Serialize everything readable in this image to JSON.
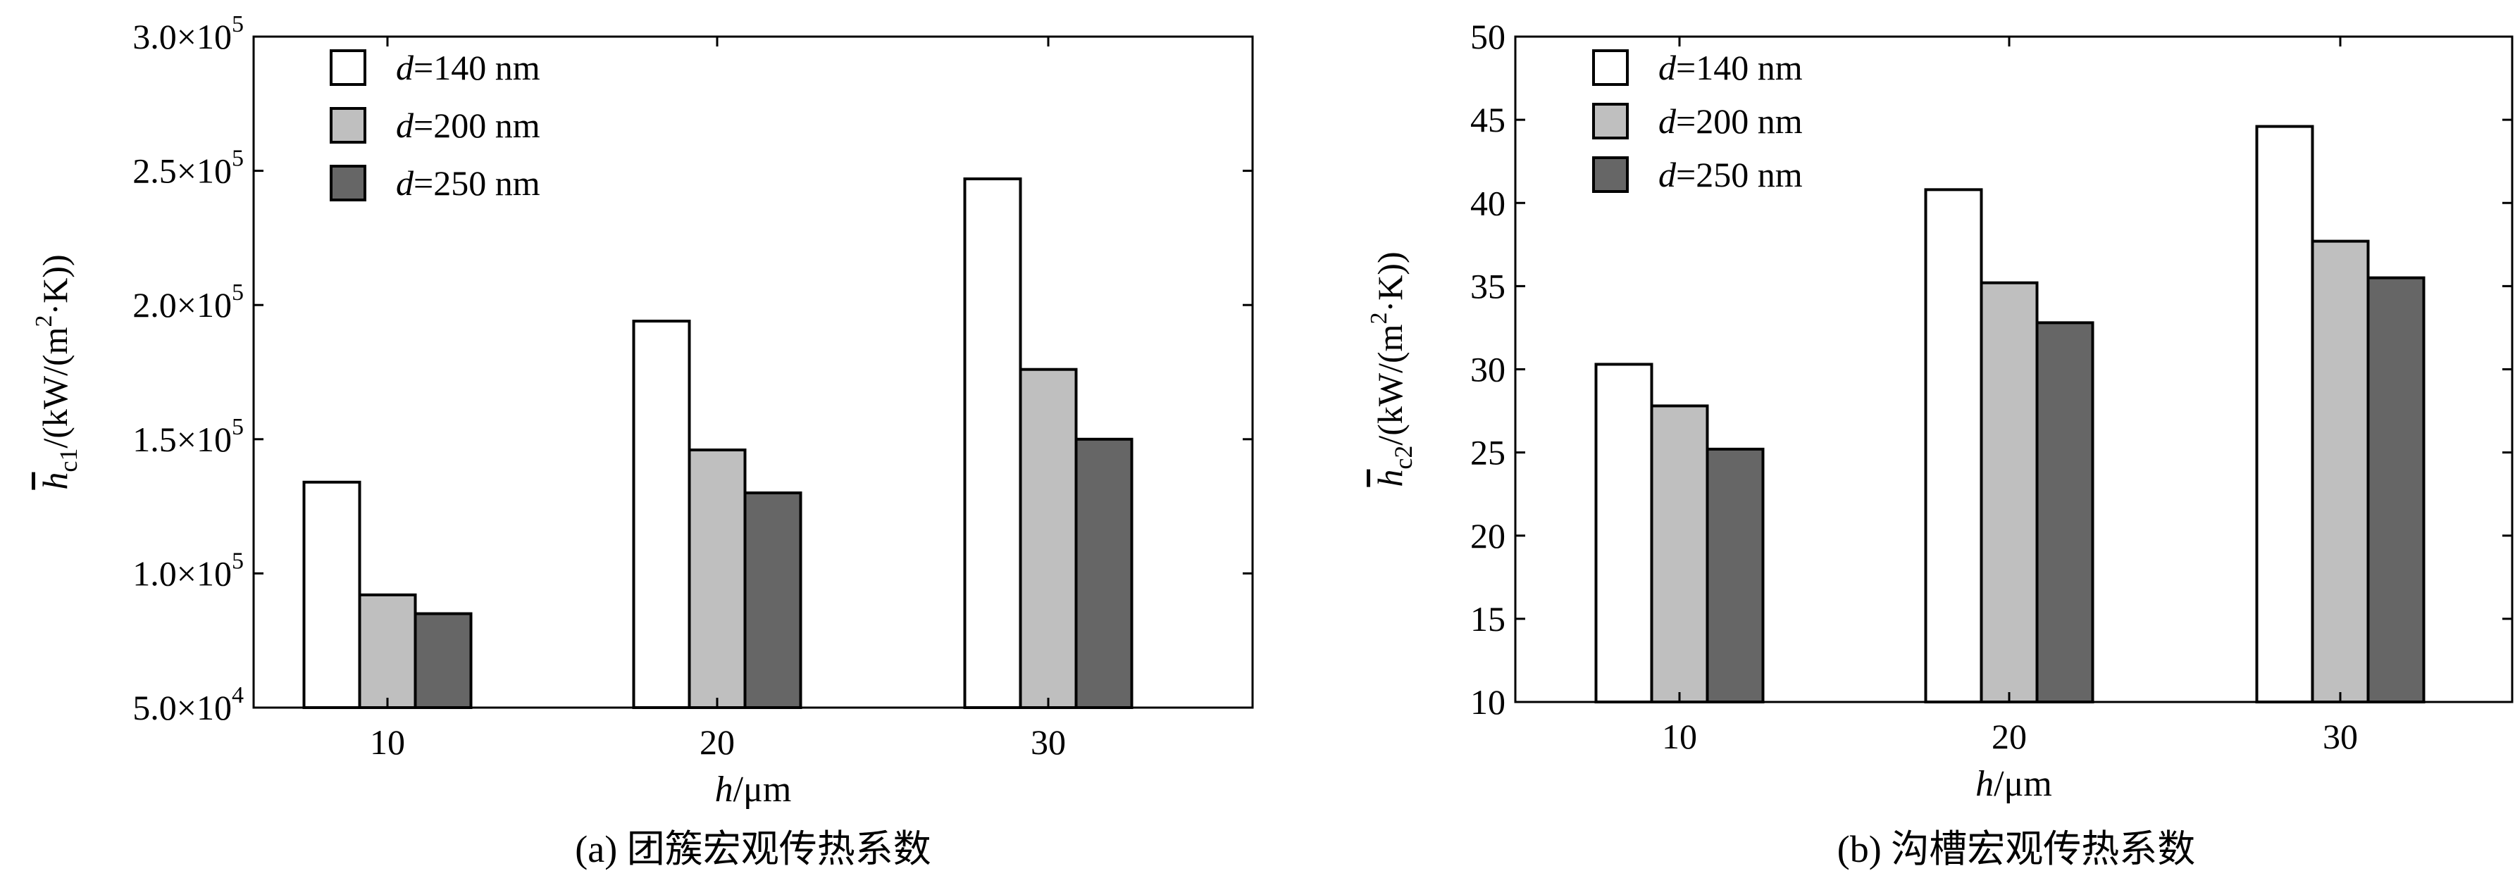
{
  "figure_colors": {
    "background": "#ffffff",
    "axis": "#000000"
  },
  "chart_data": [
    {
      "type": "bar",
      "caption": "(a) 团簇宏观传热系数",
      "ylabel_symbol": "h",
      "ylabel_sub": "c1",
      "ylabel_pre": "/(kW/(m",
      "ylabel_sup": "2",
      "ylabel_post": "·K))",
      "xlabel_symbol": "h",
      "xlabel_unit": "/μm",
      "ylim": [
        50000,
        300000
      ],
      "yticks": [
        {
          "value": 50000,
          "mant": "5.0×10",
          "exp": "4"
        },
        {
          "value": 100000,
          "mant": "1.0×10",
          "exp": "5"
        },
        {
          "value": 150000,
          "mant": "1.5×10",
          "exp": "5"
        },
        {
          "value": 200000,
          "mant": "2.0×10",
          "exp": "5"
        },
        {
          "value": 250000,
          "mant": "2.5×10",
          "exp": "5"
        },
        {
          "value": 300000,
          "mant": "3.0×10",
          "exp": "5"
        }
      ],
      "categories": [
        "10",
        "20",
        "30"
      ],
      "series": [
        {
          "name_var": "d",
          "name_rest": "=140 nm",
          "color": "#ffffff",
          "values": [
            134000,
            194000,
            247000
          ]
        },
        {
          "name_var": "d",
          "name_rest": "=200 nm",
          "color": "#bfbfbf",
          "values": [
            92000,
            146000,
            176000
          ]
        },
        {
          "name_var": "d",
          "name_rest": "=250 nm",
          "color": "#666666",
          "values": [
            85000,
            130000,
            150000
          ]
        }
      ],
      "legend_position": "top-left",
      "grid": false
    },
    {
      "type": "bar",
      "caption": "(b) 沟槽宏观传热系数",
      "ylabel_symbol": "h",
      "ylabel_sub": "c2",
      "ylabel_pre": "/(kW/(m",
      "ylabel_sup": "2",
      "ylabel_post": "·K))",
      "xlabel_symbol": "h",
      "xlabel_unit": "/μm",
      "ylim": [
        10,
        50
      ],
      "yticks": [
        {
          "value": 10,
          "mant": "10",
          "exp": ""
        },
        {
          "value": 15,
          "mant": "15",
          "exp": ""
        },
        {
          "value": 20,
          "mant": "20",
          "exp": ""
        },
        {
          "value": 25,
          "mant": "25",
          "exp": ""
        },
        {
          "value": 30,
          "mant": "30",
          "exp": ""
        },
        {
          "value": 35,
          "mant": "35",
          "exp": ""
        },
        {
          "value": 40,
          "mant": "40",
          "exp": ""
        },
        {
          "value": 45,
          "mant": "45",
          "exp": ""
        },
        {
          "value": 50,
          "mant": "50",
          "exp": ""
        }
      ],
      "categories": [
        "10",
        "20",
        "30"
      ],
      "series": [
        {
          "name_var": "d",
          "name_rest": "=140 nm",
          "color": "#ffffff",
          "values": [
            30.3,
            40.8,
            44.6
          ]
        },
        {
          "name_var": "d",
          "name_rest": "=200 nm",
          "color": "#bfbfbf",
          "values": [
            27.8,
            35.2,
            37.7
          ]
        },
        {
          "name_var": "d",
          "name_rest": "=250 nm",
          "color": "#666666",
          "values": [
            25.2,
            32.8,
            35.5
          ]
        }
      ],
      "legend_position": "top-left",
      "grid": false
    }
  ]
}
